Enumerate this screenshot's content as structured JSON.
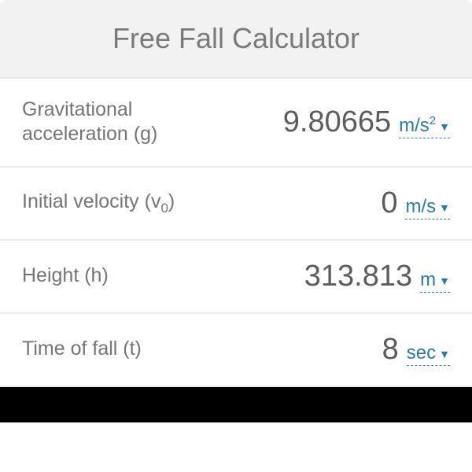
{
  "header": {
    "title": "Free Fall Calculator"
  },
  "rows": [
    {
      "label": "Gravitational acceleration (g)",
      "value": "9.80665",
      "unit": "m/s²"
    },
    {
      "label_html": "Initial velocity (v<sub>0</sub>)",
      "label": "Initial velocity (v0)",
      "value": "0",
      "unit": "m/s"
    },
    {
      "label": "Height (h)",
      "value": "313.813",
      "unit": "m"
    },
    {
      "label": "Time of fall (t)",
      "value": "8",
      "unit": "sec"
    }
  ],
  "colors": {
    "header_bg": "#f2f2f2",
    "header_text": "#7a7a7a",
    "label_text": "#757575",
    "value_text": "#5c5c5c",
    "unit_text": "#2a7aa8",
    "row_border": "#ececec",
    "footer_bg": "#000000"
  },
  "fonts": {
    "title_size": 36,
    "label_size": 25,
    "value_size": 38,
    "unit_size": 24
  }
}
